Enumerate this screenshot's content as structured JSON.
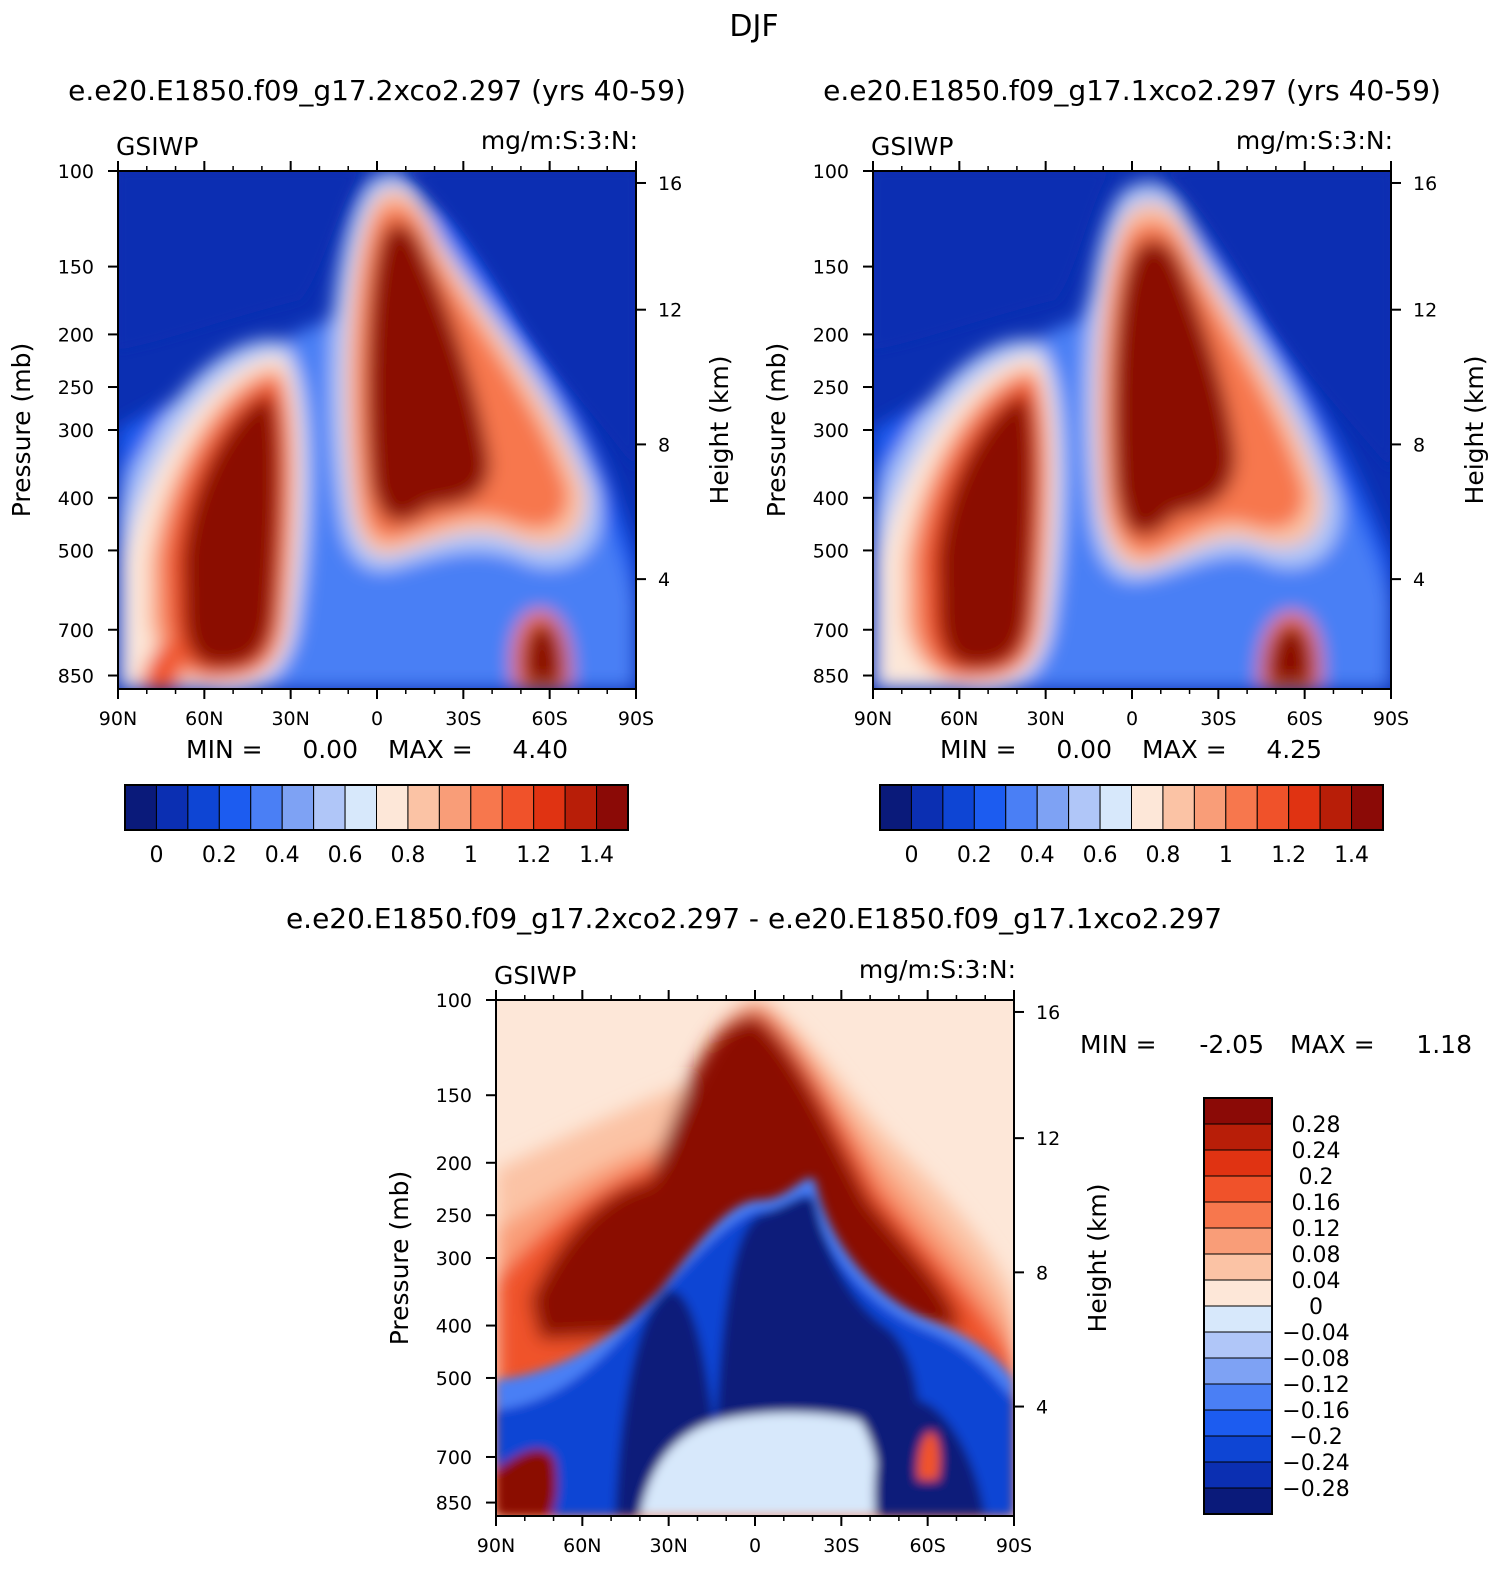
{
  "figure": {
    "title": "DJF",
    "subtitle_left": "e.e20.E1850.f09_g17.2xco2.297 (yrs 40-59)",
    "subtitle_right": "e.e20.E1850.f09_g17.1xco2.297 (yrs 40-59)",
    "subtitle_diff": "e.e20.E1850.f09_g17.2xco2.297 - e.e20.E1850.f09_g17.1xco2.297"
  },
  "chart_data": [
    {
      "type": "heatmap",
      "variable": "GSIWP",
      "units": "mg/m:S:3:N:",
      "xlabel": "",
      "ylabel": "Pressure (mb)",
      "ylabel_right": "Height (km)",
      "x_ticks": [
        "90N",
        "60N",
        "30N",
        "0",
        "30S",
        "60S",
        "90S"
      ],
      "y_ticks": [
        100,
        150,
        200,
        250,
        300,
        400,
        500,
        700,
        850
      ],
      "y_right_ticks": [
        16,
        12,
        8,
        4
      ],
      "stats": {
        "min_label": "MIN =",
        "min": "0.00",
        "max_label": "MAX =",
        "max": "4.40"
      },
      "colorbar": {
        "ticks": [
          "0",
          "0.2",
          "0.4",
          "0.6",
          "0.8",
          "1",
          "1.2",
          "1.4"
        ],
        "colors": [
          "#0a1a7a",
          "#0b2fb2",
          "#0e45d4",
          "#1c5cf0",
          "#4a7ff5",
          "#7ea2f4",
          "#b0c6f8",
          "#d7e8fb",
          "#fde7d8",
          "#fbc3a5",
          "#f99d78",
          "#f7774d",
          "#f0522a",
          "#e03312",
          "#b81e08",
          "#8b0a06"
        ]
      }
    },
    {
      "type": "heatmap",
      "variable": "GSIWP",
      "units": "mg/m:S:3:N:",
      "xlabel": "",
      "ylabel": "Pressure (mb)",
      "ylabel_right": "Height (km)",
      "x_ticks": [
        "90N",
        "60N",
        "30N",
        "0",
        "30S",
        "60S",
        "90S"
      ],
      "y_ticks": [
        100,
        150,
        200,
        250,
        300,
        400,
        500,
        700,
        850
      ],
      "y_right_ticks": [
        16,
        12,
        8,
        4
      ],
      "stats": {
        "min_label": "MIN =",
        "min": "0.00",
        "max_label": "MAX =",
        "max": "4.25"
      },
      "colorbar": {
        "ticks": [
          "0",
          "0.2",
          "0.4",
          "0.6",
          "0.8",
          "1",
          "1.2",
          "1.4"
        ],
        "colors": [
          "#0a1a7a",
          "#0b2fb2",
          "#0e45d4",
          "#1c5cf0",
          "#4a7ff5",
          "#7ea2f4",
          "#b0c6f8",
          "#d7e8fb",
          "#fde7d8",
          "#fbc3a5",
          "#f99d78",
          "#f7774d",
          "#f0522a",
          "#e03312",
          "#b81e08",
          "#8b0a06"
        ]
      }
    },
    {
      "type": "heatmap",
      "variable": "GSIWP",
      "units": "mg/m:S:3:N:",
      "xlabel": "",
      "ylabel": "Pressure (mb)",
      "ylabel_right": "Height (km)",
      "x_ticks": [
        "90N",
        "60N",
        "30N",
        "0",
        "30S",
        "60S",
        "90S"
      ],
      "y_ticks": [
        100,
        150,
        200,
        250,
        300,
        400,
        500,
        700,
        850
      ],
      "y_right_ticks": [
        16,
        12,
        8,
        4
      ],
      "stats": {
        "min_label": "MIN =",
        "min": "-2.05",
        "max_label": "MAX =",
        "max": "1.18"
      },
      "colorbar": {
        "ticks": [
          "0.28",
          "0.24",
          "0.2",
          "0.16",
          "0.12",
          "0.08",
          "0.04",
          "0",
          "-0.04",
          "-0.08",
          "-0.12",
          "-0.16",
          "-0.2",
          "-0.24",
          "-0.28"
        ],
        "colors": [
          "#8b0a06",
          "#b81e08",
          "#e03312",
          "#f0522a",
          "#f7774d",
          "#f99d78",
          "#fbc3a5",
          "#fde7d8",
          "#d7e8fb",
          "#b0c6f8",
          "#7ea2f4",
          "#4a7ff5",
          "#1c5cf0",
          "#0e45d4",
          "#0b2fb2",
          "#0a1a7a"
        ]
      }
    }
  ]
}
